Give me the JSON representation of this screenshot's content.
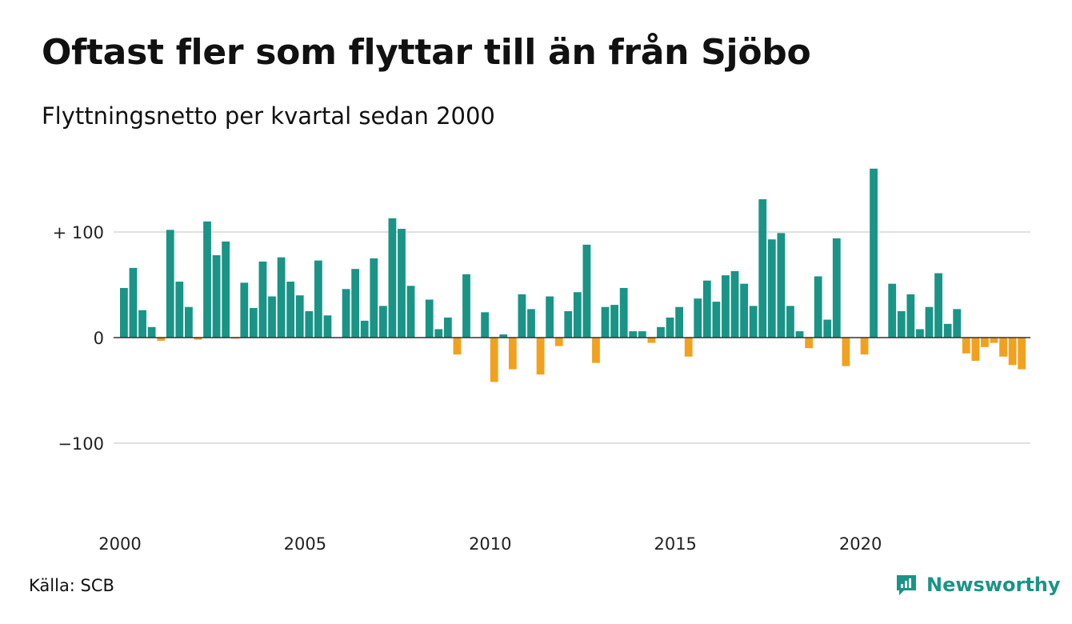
{
  "header": {
    "title": "Oftast fler som flyttar till än från Sjöbo",
    "subtitle": "Flyttningsnetto per kvartal sedan 2000"
  },
  "footer": {
    "source": "Källa: SCB",
    "logo_text": "Newsworthy",
    "logo_icon": "newsworthy-chart-bubble-icon"
  },
  "chart_data": {
    "type": "bar",
    "x_start": 2000,
    "periods_per_year": 4,
    "values": [
      47,
      66,
      26,
      10,
      -3,
      102,
      53,
      29,
      -2,
      110,
      78,
      91,
      -1,
      52,
      28,
      72,
      39,
      76,
      53,
      40,
      25,
      73,
      21,
      0,
      46,
      65,
      16,
      75,
      30,
      113,
      103,
      49,
      0,
      36,
      8,
      19,
      -16,
      60,
      0,
      24,
      -42,
      3,
      -30,
      41,
      27,
      -35,
      39,
      -8,
      25,
      43,
      88,
      -24,
      29,
      31,
      47,
      6,
      6,
      -5,
      10,
      19,
      29,
      -18,
      37,
      54,
      34,
      59,
      63,
      51,
      30,
      131,
      93,
      99,
      30,
      6,
      -10,
      58,
      17,
      94,
      -27,
      0,
      -16,
      160,
      0,
      51,
      25,
      41,
      8,
      29,
      61,
      13,
      27,
      -15,
      -22,
      -9,
      -5,
      -18,
      -26,
      -30
    ],
    "x_ticks": [
      "2000",
      "2005",
      "2010",
      "2015",
      "2020"
    ],
    "y_ticks": [
      {
        "value": 100,
        "label": "+ 100"
      },
      {
        "value": 0,
        "label": "0"
      },
      {
        "value": -100,
        "label": "−100"
      }
    ],
    "ylim": [
      -180,
      165
    ],
    "grid": true,
    "colors": {
      "positive": "#1a9486",
      "negative": "#f2a11f",
      "grid": "#e0e0e0",
      "zero_line": "#333333"
    }
  }
}
